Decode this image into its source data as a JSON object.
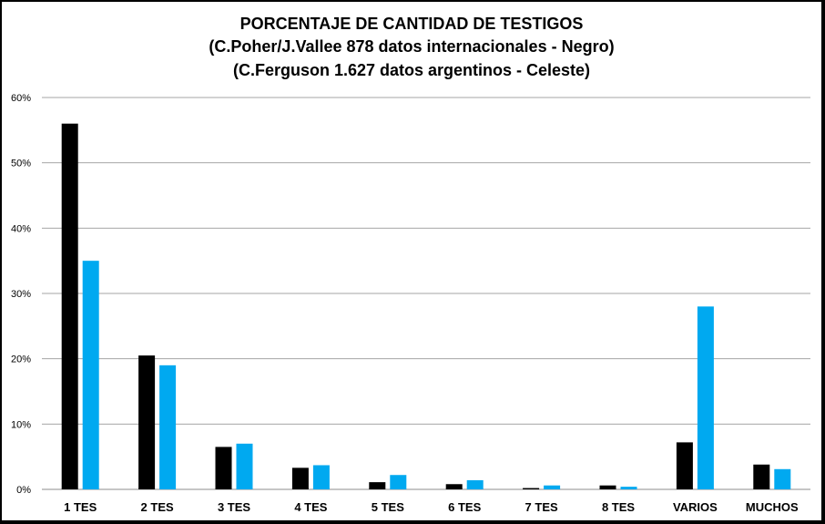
{
  "chart_data": {
    "type": "bar",
    "title_lines": [
      "PORCENTAJE DE CANTIDAD DE TESTIGOS",
      "(C.Poher/J.Vallee 878 datos internacionales - Negro)",
      "(C.Ferguson 1.627 datos argentinos - Celeste)"
    ],
    "categories": [
      "1 TES",
      "2 TES",
      "3 TES",
      "4 TES",
      "5 TES",
      "6 TES",
      "7 TES",
      "8 TES",
      "VARIOS",
      "MUCHOS"
    ],
    "series": [
      {
        "values": [
          56,
          20.5,
          6.5,
          3.3,
          1.1,
          0.8,
          0.2,
          0.6,
          7.2,
          3.8
        ],
        "color": "#000000"
      },
      {
        "values": [
          35,
          19,
          7,
          3.7,
          2.2,
          1.4,
          0.6,
          0.4,
          28,
          3.1
        ],
        "color": "#00A9F0"
      }
    ],
    "ylim": [
      0,
      60
    ],
    "yticks": [
      "0%",
      "10%",
      "20%",
      "30%",
      "40%",
      "50%",
      "60%"
    ],
    "grid": true,
    "legend": "none"
  }
}
